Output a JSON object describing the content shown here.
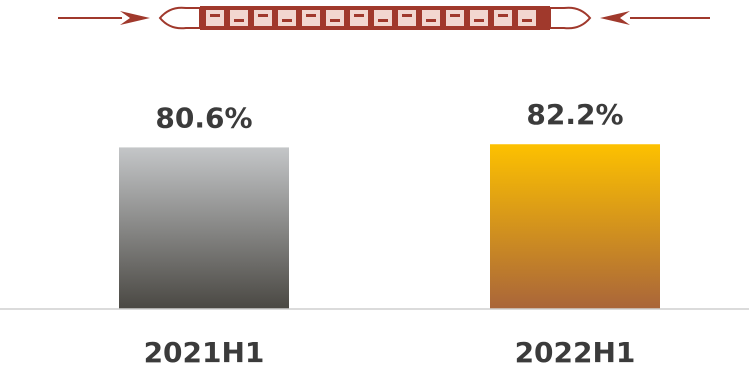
{
  "chart_data": {
    "type": "bar",
    "categories": [
      "2021H1",
      "2022H1"
    ],
    "values": [
      80.6,
      82.2
    ],
    "value_labels": [
      "80.6%",
      "82.2%"
    ],
    "title": "",
    "xlabel": "",
    "ylabel": "",
    "grid": false,
    "legend": "none",
    "bar_gradients": [
      {
        "top": "#c4c6c8",
        "bottom": "#4a4843"
      },
      {
        "top": "#fdc100",
        "bottom": "#a9653a"
      }
    ]
  },
  "colors": {
    "label_text": "#3b3b3b",
    "axis_line": "#cfcfcf",
    "ornament": "#a0392c"
  },
  "decoration": {
    "icon": "tribal-ornament-divider-icon"
  }
}
